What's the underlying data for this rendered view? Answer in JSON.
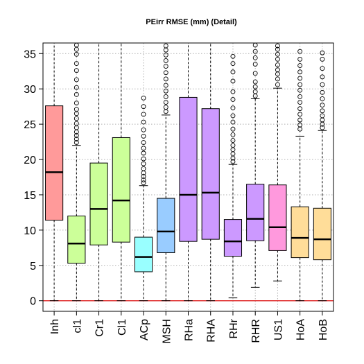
{
  "chart_data": {
    "type": "box",
    "title": "PEirr RMSE (mm) (Detail)",
    "xlabel": "",
    "ylabel": "",
    "ylim": [
      -1.5,
      36.5
    ],
    "yticks": [
      0,
      5,
      10,
      15,
      20,
      25,
      30,
      35
    ],
    "grid": true,
    "reference_line": {
      "value": 0,
      "color": "#e03030"
    },
    "categories": [
      "Inh",
      "cl1",
      "Cr1",
      "Cl1",
      "ACp",
      "MSH",
      "RHa",
      "RHA",
      "RHr",
      "RHR",
      "US1",
      "HoA",
      "HoB"
    ],
    "boxes": [
      {
        "category": "Inh",
        "color": "#ff9a9a",
        "q1": 11.4,
        "median": 18.2,
        "q3": 27.6,
        "whisker_low": 0.0,
        "whisker_high": 36.5,
        "outliers": []
      },
      {
        "category": "cl1",
        "color": "#ccff99",
        "q1": 5.3,
        "median": 8.1,
        "q3": 12.0,
        "whisker_low": 0.0,
        "whisker_high": 22.0,
        "outliers": [
          22.4,
          22.9,
          23.4,
          23.9,
          24.5,
          25.1,
          25.8,
          26.5,
          27.1,
          28.0,
          29.2,
          30.2,
          31.3,
          32.6,
          33.6,
          34.9,
          35.6,
          36.2
        ]
      },
      {
        "category": "Cr1",
        "color": "#ccff99",
        "q1": 7.9,
        "median": 13.0,
        "q3": 19.5,
        "whisker_low": 0.0,
        "whisker_high": 36.5,
        "outliers": []
      },
      {
        "category": "Cl1",
        "color": "#ccff99",
        "q1": 8.3,
        "median": 14.2,
        "q3": 23.1,
        "whisker_low": 0.0,
        "whisker_high": 36.5,
        "outliers": []
      },
      {
        "category": "ACp",
        "color": "#99ffff",
        "q1": 4.1,
        "median": 6.2,
        "q3": 9.0,
        "whisker_low": 0.0,
        "whisker_high": 16.3,
        "outliers": [
          16.7,
          17.1,
          17.6,
          18.1,
          18.7,
          19.4,
          20.1,
          20.9,
          21.6,
          22.4,
          23.3,
          24.2,
          25.3,
          26.4,
          27.5,
          28.7
        ]
      },
      {
        "category": "MSH",
        "color": "#99ccff",
        "q1": 6.8,
        "median": 9.8,
        "q3": 14.5,
        "whisker_low": 0.0,
        "whisker_high": 26.3,
        "outliers": [
          26.8,
          27.4,
          28.1,
          28.9,
          29.7,
          30.5,
          31.4,
          32.3,
          33.2,
          34.0,
          34.8,
          35.5,
          36.1
        ]
      },
      {
        "category": "RHa",
        "color": "#cc99ff",
        "q1": 8.4,
        "median": 15.0,
        "q3": 28.8,
        "whisker_low": 0.0,
        "whisker_high": 36.5,
        "outliers": []
      },
      {
        "category": "RHA",
        "color": "#cc99ff",
        "q1": 8.7,
        "median": 15.3,
        "q3": 27.2,
        "whisker_low": 0.0,
        "whisker_high": 36.5,
        "outliers": []
      },
      {
        "category": "RHr",
        "color": "#cc99ff",
        "q1": 6.3,
        "median": 8.4,
        "q3": 11.5,
        "whisker_low": 0.4,
        "whisker_high": 19.3,
        "outliers": [
          19.7,
          20.2,
          20.8,
          21.4,
          22.0,
          22.7,
          23.5,
          24.3,
          25.3,
          26.2,
          27.3,
          28.5,
          29.6,
          31.1,
          32.4,
          33.6,
          34.6
        ]
      },
      {
        "category": "RHR",
        "color": "#cc99ff",
        "q1": 8.5,
        "median": 11.6,
        "q3": 16.5,
        "whisker_low": 1.9,
        "whisker_high": 28.6,
        "outliers": [
          29.0,
          29.6,
          30.3,
          31.0,
          32.2,
          33.5,
          34.4,
          35.3,
          36.2
        ]
      },
      {
        "category": "US1",
        "color": "#ff99dd",
        "q1": 7.1,
        "median": 10.4,
        "q3": 16.4,
        "whisker_low": 2.8,
        "whisker_high": 30.1,
        "outliers": [
          30.6,
          31.4,
          32.1,
          32.7,
          33.4,
          34.2,
          34.9,
          35.6,
          36.1
        ]
      },
      {
        "category": "HoA",
        "color": "#ffdd99",
        "q1": 6.1,
        "median": 8.9,
        "q3": 13.3,
        "whisker_low": 0.0,
        "whisker_high": 23.3,
        "outliers": [
          24.3,
          24.9,
          25.6,
          26.4,
          27.2,
          28.1,
          28.9,
          29.8,
          30.6,
          31.5,
          32.4,
          33.3,
          34.2,
          35.3
        ]
      },
      {
        "category": "HoB",
        "color": "#ffdd99",
        "q1": 5.8,
        "median": 8.7,
        "q3": 13.1,
        "whisker_low": 0.0,
        "whisker_high": 24.1,
        "outliers": [
          24.5,
          25.0,
          25.6,
          26.2,
          26.9,
          27.7,
          28.6,
          29.5,
          30.6,
          31.7,
          32.9,
          34.2,
          35.1
        ]
      }
    ]
  }
}
